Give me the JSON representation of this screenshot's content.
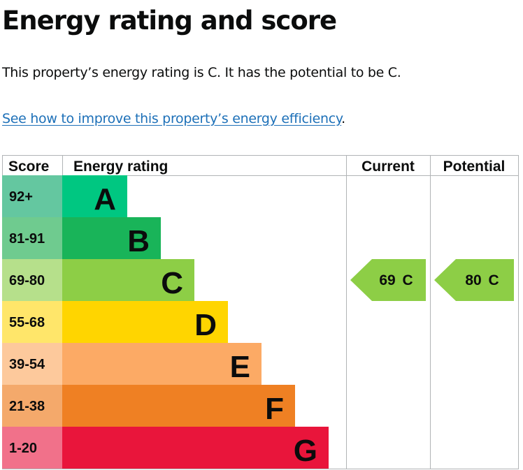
{
  "page": {
    "heading": "Energy rating and score",
    "summary": "This property’s energy rating is C. It has the potential to be C.",
    "link_text": "See how to improve this property’s energy efficiency",
    "link_suffix": "."
  },
  "chart_data": {
    "type": "bar",
    "columns": [
      "Score",
      "Energy rating",
      "Current",
      "Potential"
    ],
    "bands": [
      {
        "letter": "A",
        "score_range": "92+",
        "min": 92,
        "max": 100,
        "color": "#008054",
        "bg": "#64c7a0"
      },
      {
        "letter": "B",
        "score_range": "81-91",
        "min": 81,
        "max": 91,
        "color": "#19b459",
        "bg": "#6fcb8f"
      },
      {
        "letter": "C",
        "score_range": "69-80",
        "min": 69,
        "max": 80,
        "color": "#8dce46",
        "bg": "#b6e08b"
      },
      {
        "letter": "D",
        "score_range": "55-68",
        "min": 55,
        "max": 68,
        "color": "#ffd500",
        "bg": "#ffe66a"
      },
      {
        "letter": "E",
        "score_range": "39-54",
        "min": 39,
        "max": 54,
        "color": "#fcaa65",
        "bg": "#fdc99c"
      },
      {
        "letter": "F",
        "score_range": "21-38",
        "min": 21,
        "max": 38,
        "color": "#ef8023",
        "bg": "#f4a96b"
      },
      {
        "letter": "G",
        "score_range": "1-20",
        "min": 1,
        "max": 20,
        "color": "#e9153b",
        "bg": "#f1718a"
      }
    ],
    "band_colors": [
      "#00c781",
      "#19b459",
      "#8dce46",
      "#ffd500",
      "#fcaa65",
      "#ef8023",
      "#e9153b"
    ],
    "current": {
      "score": 69,
      "letter": "C",
      "label": "69 C"
    },
    "potential": {
      "score": 80,
      "letter": "C",
      "label": "80 C"
    }
  }
}
